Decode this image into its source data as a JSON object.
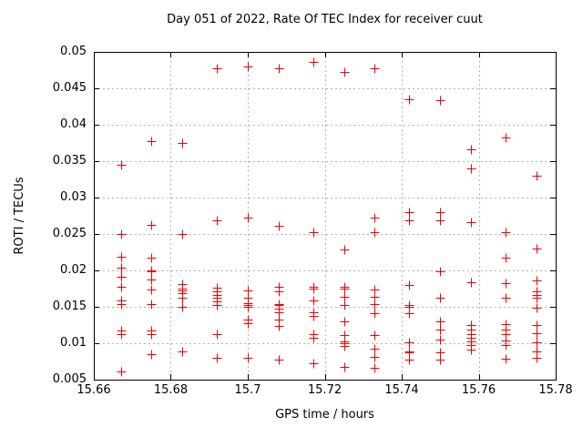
{
  "window": {
    "background": "#ffffff"
  },
  "chart_data": {
    "type": "scatter",
    "title": "Day 051 of 2022, Rate Of TEC Index for receiver cuut",
    "xlabel": "GPS time / hours",
    "ylabel": "ROTI / TECUs",
    "xlim": [
      15.66,
      15.78
    ],
    "ylim": [
      0.005,
      0.05
    ],
    "xtick_labels": [
      "15.66",
      "15.68",
      "15.7",
      "15.72",
      "15.74",
      "15.76",
      "15.78"
    ],
    "ytick_labels": [
      "0.005",
      "0.01",
      "0.015",
      "0.02",
      "0.025",
      "0.03",
      "0.035",
      "0.04",
      "0.045",
      "0.05"
    ],
    "grid": true,
    "legend": "none",
    "marker": {
      "shape": "plus",
      "color": "#ee0000",
      "size": 11
    },
    "colors": {
      "axis": "#000000",
      "grid": "#b4b4b4",
      "marker": "#ee0000"
    },
    "series": [
      {
        "name": "ROTI",
        "points": [
          [
            15.667,
            0.0345
          ],
          [
            15.667,
            0.025
          ],
          [
            15.667,
            0.0219
          ],
          [
            15.667,
            0.0204
          ],
          [
            15.667,
            0.0191
          ],
          [
            15.667,
            0.0178
          ],
          [
            15.667,
            0.0159
          ],
          [
            15.667,
            0.0154
          ],
          [
            15.667,
            0.0117
          ],
          [
            15.667,
            0.0112
          ],
          [
            15.667,
            0.0061
          ],
          [
            15.675,
            0.0377
          ],
          [
            15.675,
            0.0263
          ],
          [
            15.675,
            0.0217
          ],
          [
            15.675,
            0.02
          ],
          [
            15.675,
            0.0199
          ],
          [
            15.675,
            0.0187
          ],
          [
            15.675,
            0.0174
          ],
          [
            15.675,
            0.0154
          ],
          [
            15.675,
            0.0117
          ],
          [
            15.675,
            0.0112
          ],
          [
            15.675,
            0.0085
          ],
          [
            15.683,
            0.0375
          ],
          [
            15.683,
            0.025
          ],
          [
            15.683,
            0.0181
          ],
          [
            15.683,
            0.0175
          ],
          [
            15.683,
            0.0172
          ],
          [
            15.683,
            0.0169
          ],
          [
            15.683,
            0.0163
          ],
          [
            15.683,
            0.015
          ],
          [
            15.683,
            0.0089
          ],
          [
            15.692,
            0.0478
          ],
          [
            15.692,
            0.0269
          ],
          [
            15.692,
            0.0176
          ],
          [
            15.692,
            0.0171
          ],
          [
            15.692,
            0.0166
          ],
          [
            15.692,
            0.0162
          ],
          [
            15.692,
            0.0157
          ],
          [
            15.692,
            0.0152
          ],
          [
            15.692,
            0.0112
          ],
          [
            15.692,
            0.008
          ],
          [
            15.7,
            0.048
          ],
          [
            15.7,
            0.0272
          ],
          [
            15.7,
            0.0172
          ],
          [
            15.7,
            0.0162
          ],
          [
            15.7,
            0.0155
          ],
          [
            15.7,
            0.0153
          ],
          [
            15.7,
            0.015
          ],
          [
            15.7,
            0.0133
          ],
          [
            15.7,
            0.0128
          ],
          [
            15.7,
            0.008
          ],
          [
            15.708,
            0.0478
          ],
          [
            15.708,
            0.0261
          ],
          [
            15.708,
            0.0177
          ],
          [
            15.708,
            0.0171
          ],
          [
            15.708,
            0.0154
          ],
          [
            15.708,
            0.0152
          ],
          [
            15.708,
            0.0147
          ],
          [
            15.708,
            0.0142
          ],
          [
            15.708,
            0.0133
          ],
          [
            15.708,
            0.0124
          ],
          [
            15.708,
            0.0077
          ],
          [
            15.717,
            0.0486
          ],
          [
            15.717,
            0.0252
          ],
          [
            15.717,
            0.0177
          ],
          [
            15.717,
            0.0175
          ],
          [
            15.717,
            0.0159
          ],
          [
            15.717,
            0.0142
          ],
          [
            15.717,
            0.0137
          ],
          [
            15.717,
            0.0113
          ],
          [
            15.717,
            0.0107
          ],
          [
            15.717,
            0.0072
          ],
          [
            15.725,
            0.0473
          ],
          [
            15.725,
            0.0229
          ],
          [
            15.725,
            0.0177
          ],
          [
            15.725,
            0.0175
          ],
          [
            15.725,
            0.0164
          ],
          [
            15.725,
            0.0152
          ],
          [
            15.725,
            0.013
          ],
          [
            15.725,
            0.0111
          ],
          [
            15.725,
            0.0102
          ],
          [
            15.725,
            0.01
          ],
          [
            15.725,
            0.0096
          ],
          [
            15.725,
            0.0067
          ],
          [
            15.733,
            0.0478
          ],
          [
            15.733,
            0.0272
          ],
          [
            15.733,
            0.0252
          ],
          [
            15.733,
            0.0174
          ],
          [
            15.733,
            0.0164
          ],
          [
            15.733,
            0.0154
          ],
          [
            15.733,
            0.0141
          ],
          [
            15.733,
            0.0111
          ],
          [
            15.733,
            0.0093
          ],
          [
            15.733,
            0.0081
          ],
          [
            15.733,
            0.0066
          ],
          [
            15.742,
            0.0435
          ],
          [
            15.742,
            0.028
          ],
          [
            15.742,
            0.0269
          ],
          [
            15.742,
            0.018
          ],
          [
            15.742,
            0.0152
          ],
          [
            15.742,
            0.015
          ],
          [
            15.742,
            0.0141
          ],
          [
            15.742,
            0.0101
          ],
          [
            15.742,
            0.0089
          ],
          [
            15.742,
            0.0087
          ],
          [
            15.742,
            0.0078
          ],
          [
            15.75,
            0.0434
          ],
          [
            15.75,
            0.028
          ],
          [
            15.75,
            0.0269
          ],
          [
            15.75,
            0.0199
          ],
          [
            15.75,
            0.0163
          ],
          [
            15.75,
            0.013
          ],
          [
            15.75,
            0.0119
          ],
          [
            15.75,
            0.0105
          ],
          [
            15.75,
            0.0088
          ],
          [
            15.75,
            0.0077
          ],
          [
            15.758,
            0.0366
          ],
          [
            15.758,
            0.034
          ],
          [
            15.758,
            0.0266
          ],
          [
            15.758,
            0.0184
          ],
          [
            15.758,
            0.0125
          ],
          [
            15.758,
            0.0119
          ],
          [
            15.758,
            0.0113
          ],
          [
            15.758,
            0.0107
          ],
          [
            15.758,
            0.0102
          ],
          [
            15.758,
            0.0097
          ],
          [
            15.758,
            0.0091
          ],
          [
            15.767,
            0.0383
          ],
          [
            15.767,
            0.0252
          ],
          [
            15.767,
            0.0217
          ],
          [
            15.767,
            0.0182
          ],
          [
            15.767,
            0.0162
          ],
          [
            15.767,
            0.0126
          ],
          [
            15.767,
            0.0119
          ],
          [
            15.767,
            0.0112
          ],
          [
            15.767,
            0.0104
          ],
          [
            15.767,
            0.0097
          ],
          [
            15.767,
            0.0079
          ],
          [
            15.775,
            0.033
          ],
          [
            15.775,
            0.023
          ],
          [
            15.775,
            0.0186
          ],
          [
            15.775,
            0.0171
          ],
          [
            15.775,
            0.0166
          ],
          [
            15.775,
            0.0162
          ],
          [
            15.775,
            0.0149
          ],
          [
            15.775,
            0.0125
          ],
          [
            15.775,
            0.0114
          ],
          [
            15.775,
            0.0101
          ],
          [
            15.775,
            0.0089
          ],
          [
            15.775,
            0.008
          ]
        ]
      }
    ]
  }
}
